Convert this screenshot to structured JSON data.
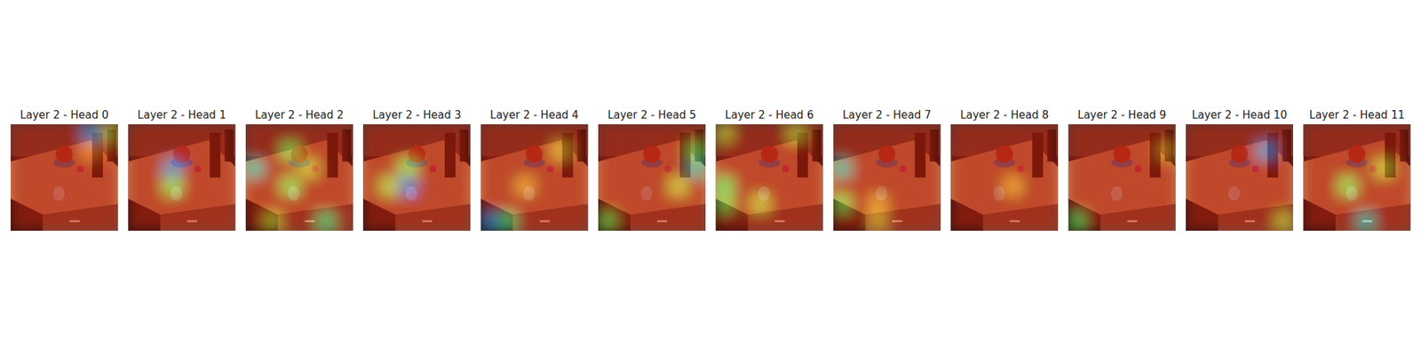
{
  "chart_data": [
    {
      "type": "heatmap",
      "title": "Layer 2 - Head 0",
      "tick_labels": false,
      "cells": [
        [
          0.9,
          0.9,
          0.9,
          0.9,
          0.2,
          0.6
        ],
        [
          0.9,
          0.9,
          0.9,
          0.9,
          0.75,
          0.85
        ],
        [
          0.9,
          0.9,
          0.9,
          0.9,
          0.9,
          0.9
        ],
        [
          0.9,
          0.9,
          0.9,
          0.9,
          0.9,
          0.9
        ],
        [
          0.9,
          0.9,
          0.9,
          0.9,
          0.9,
          0.9
        ],
        [
          0.9,
          0.9,
          0.9,
          0.9,
          0.9,
          0.9
        ]
      ]
    },
    {
      "type": "heatmap",
      "title": "Layer 2 - Head 1",
      "tick_labels": false,
      "cells": [
        [
          0.9,
          0.9,
          0.9,
          0.9,
          0.9,
          0.9
        ],
        [
          0.9,
          0.9,
          0.9,
          0.9,
          0.9,
          0.9
        ],
        [
          0.9,
          0.9,
          0.2,
          0.9,
          0.9,
          0.9
        ],
        [
          0.9,
          0.9,
          0.5,
          0.9,
          0.9,
          0.9
        ],
        [
          0.9,
          0.9,
          0.9,
          0.9,
          0.9,
          0.9
        ],
        [
          0.9,
          0.9,
          0.9,
          0.9,
          0.9,
          0.9
        ]
      ]
    },
    {
      "type": "heatmap",
      "title": "Layer 2 - Head 2",
      "tick_labels": false,
      "cells": [
        [
          0.9,
          0.9,
          0.9,
          0.9,
          0.9,
          0.9
        ],
        [
          0.9,
          0.9,
          0.5,
          0.9,
          0.9,
          0.9
        ],
        [
          0.3,
          0.9,
          0.9,
          0.6,
          0.9,
          0.9
        ],
        [
          0.9,
          0.9,
          0.5,
          0.9,
          0.9,
          0.9
        ],
        [
          0.9,
          0.9,
          0.9,
          0.9,
          0.9,
          0.9
        ],
        [
          0.9,
          0.6,
          0.9,
          0.9,
          0.4,
          0.9
        ]
      ]
    },
    {
      "type": "heatmap",
      "title": "Layer 2 - Head 3",
      "tick_labels": false,
      "cells": [
        [
          0.9,
          0.9,
          0.9,
          0.9,
          0.9,
          0.9
        ],
        [
          0.9,
          0.9,
          0.9,
          0.9,
          0.9,
          0.9
        ],
        [
          0.9,
          0.9,
          0.5,
          0.9,
          0.9,
          0.9
        ],
        [
          0.9,
          0.55,
          0.15,
          0.9,
          0.9,
          0.9
        ],
        [
          0.9,
          0.9,
          0.9,
          0.9,
          0.9,
          0.9
        ],
        [
          0.9,
          0.9,
          0.9,
          0.9,
          0.9,
          0.9
        ]
      ]
    },
    {
      "type": "heatmap",
      "title": "Layer 2 - Head 4",
      "tick_labels": false,
      "cells": [
        [
          0.9,
          0.9,
          0.9,
          0.9,
          0.9,
          0.9
        ],
        [
          0.9,
          0.9,
          0.9,
          0.9,
          0.65,
          0.9
        ],
        [
          0.9,
          0.9,
          0.9,
          0.9,
          0.9,
          0.9
        ],
        [
          0.9,
          0.9,
          0.7,
          0.9,
          0.9,
          0.9
        ],
        [
          0.9,
          0.9,
          0.9,
          0.9,
          0.9,
          0.9
        ],
        [
          0.2,
          0.4,
          0.9,
          0.9,
          0.9,
          0.9
        ]
      ]
    },
    {
      "type": "heatmap",
      "title": "Layer 2 - Head 5",
      "tick_labels": false,
      "cells": [
        [
          0.9,
          0.9,
          0.9,
          0.9,
          0.9,
          0.9
        ],
        [
          0.9,
          0.9,
          0.9,
          0.9,
          0.9,
          0.5
        ],
        [
          0.9,
          0.9,
          0.9,
          0.9,
          0.9,
          0.3
        ],
        [
          0.9,
          0.9,
          0.9,
          0.9,
          0.6,
          0.9
        ],
        [
          0.9,
          0.9,
          0.9,
          0.9,
          0.9,
          0.9
        ],
        [
          0.5,
          0.9,
          0.9,
          0.9,
          0.9,
          0.9
        ]
      ]
    },
    {
      "type": "heatmap",
      "title": "Layer 2 - Head 6",
      "tick_labels": false,
      "cells": [
        [
          0.6,
          0.9,
          0.9,
          0.9,
          0.6,
          0.9
        ],
        [
          0.9,
          0.9,
          0.9,
          0.9,
          0.9,
          0.9
        ],
        [
          0.9,
          0.9,
          0.9,
          0.9,
          0.9,
          0.9
        ],
        [
          0.45,
          0.9,
          0.9,
          0.9,
          0.9,
          0.9
        ],
        [
          0.5,
          0.9,
          0.6,
          0.9,
          0.9,
          0.9
        ],
        [
          0.9,
          0.9,
          0.9,
          0.9,
          0.9,
          0.9
        ]
      ]
    },
    {
      "type": "heatmap",
      "title": "Layer 2 - Head 7",
      "tick_labels": false,
      "cells": [
        [
          0.9,
          0.9,
          0.9,
          0.9,
          0.9,
          0.9
        ],
        [
          0.9,
          0.9,
          0.9,
          0.9,
          0.9,
          0.9
        ],
        [
          0.3,
          0.9,
          0.9,
          0.9,
          0.9,
          0.9
        ],
        [
          0.9,
          0.9,
          0.9,
          0.9,
          0.9,
          0.9
        ],
        [
          0.5,
          0.9,
          0.7,
          0.9,
          0.9,
          0.9
        ],
        [
          0.9,
          0.9,
          0.65,
          0.9,
          0.9,
          0.9
        ]
      ]
    },
    {
      "type": "heatmap",
      "title": "Layer 2 - Head 8",
      "tick_labels": false,
      "cells": [
        [
          0.9,
          0.9,
          0.9,
          0.9,
          0.9,
          0.9
        ],
        [
          0.9,
          0.9,
          0.9,
          0.9,
          0.9,
          0.9
        ],
        [
          0.9,
          0.9,
          0.9,
          0.9,
          0.9,
          0.9
        ],
        [
          0.9,
          0.9,
          0.9,
          0.7,
          0.9,
          0.9
        ],
        [
          0.9,
          0.9,
          0.9,
          0.9,
          0.9,
          0.9
        ],
        [
          0.9,
          0.9,
          0.9,
          0.9,
          0.9,
          0.9
        ]
      ]
    },
    {
      "type": "heatmap",
      "title": "Layer 2 - Head 9",
      "tick_labels": false,
      "cells": [
        [
          0.9,
          0.9,
          0.9,
          0.9,
          0.9,
          0.9
        ],
        [
          0.9,
          0.9,
          0.9,
          0.9,
          0.9,
          0.7
        ],
        [
          0.9,
          0.9,
          0.9,
          0.9,
          0.9,
          0.9
        ],
        [
          0.9,
          0.9,
          0.9,
          0.9,
          0.9,
          0.9
        ],
        [
          0.9,
          0.9,
          0.9,
          0.9,
          0.9,
          0.9
        ],
        [
          0.45,
          0.9,
          0.9,
          0.9,
          0.9,
          0.9
        ]
      ]
    },
    {
      "type": "heatmap",
      "title": "Layer 2 - Head 10",
      "tick_labels": false,
      "cells": [
        [
          0.9,
          0.9,
          0.9,
          0.9,
          0.9,
          0.9
        ],
        [
          0.9,
          0.9,
          0.9,
          0.9,
          0.2,
          0.9
        ],
        [
          0.9,
          0.9,
          0.9,
          0.9,
          0.9,
          0.9
        ],
        [
          0.9,
          0.9,
          0.9,
          0.9,
          0.9,
          0.9
        ],
        [
          0.9,
          0.9,
          0.9,
          0.9,
          0.9,
          0.9
        ],
        [
          0.9,
          0.9,
          0.9,
          0.9,
          0.9,
          0.6
        ]
      ]
    },
    {
      "type": "heatmap",
      "title": "Layer 2 - Head 11",
      "tick_labels": false,
      "cells": [
        [
          0.9,
          0.9,
          0.9,
          0.9,
          0.9,
          0.9
        ],
        [
          0.9,
          0.9,
          0.9,
          0.9,
          0.9,
          0.9
        ],
        [
          0.9,
          0.9,
          0.9,
          0.9,
          0.6,
          0.9
        ],
        [
          0.9,
          0.9,
          0.5,
          0.9,
          0.9,
          0.9
        ],
        [
          0.9,
          0.9,
          0.9,
          0.9,
          0.9,
          0.9
        ],
        [
          0.9,
          0.9,
          0.9,
          0.3,
          0.9,
          0.9
        ]
      ]
    }
  ]
}
